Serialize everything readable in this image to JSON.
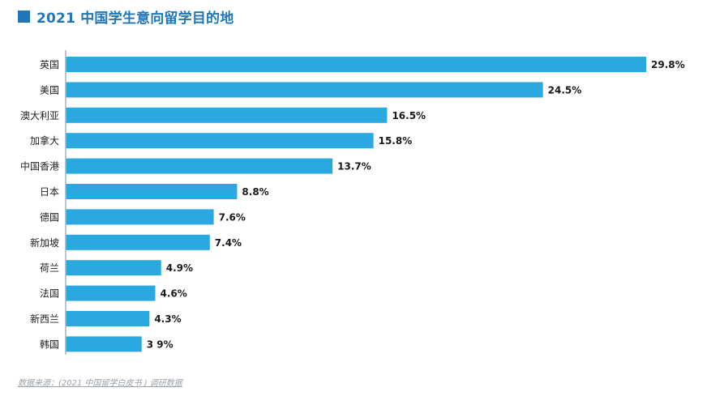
{
  "title": "2021 中国学生意向留学目的地",
  "source": "数据来源：(2021 中国留学白皮书 ) 调研数据",
  "colors": {
    "bar": "#2aa8e0",
    "accent": "#1f77b8",
    "axis": "#9fb3c1"
  },
  "chart_data": {
    "type": "bar",
    "orientation": "horizontal",
    "title": "2021 中国学生意向留学目的地",
    "categories": [
      "英国",
      "美国",
      "澳大利亚",
      "加拿大",
      "中国香港",
      "日本",
      "德国",
      "新加坡",
      "荷兰",
      "法国",
      "新西兰",
      "韩国"
    ],
    "values": [
      29.8,
      24.5,
      16.5,
      15.8,
      13.7,
      8.8,
      7.6,
      7.4,
      4.9,
      4.6,
      4.3,
      3.9
    ],
    "value_labels": [
      "29.8%",
      "24.5%",
      "16.5%",
      "15.8%",
      "13.7%",
      "8.8%",
      "7.6%",
      "7.4%",
      "4.9%",
      "4.6%",
      "4.3%",
      "3 9%"
    ],
    "unit": "%",
    "xlim": [
      0,
      29.8
    ],
    "grid": false,
    "legend": "none"
  }
}
